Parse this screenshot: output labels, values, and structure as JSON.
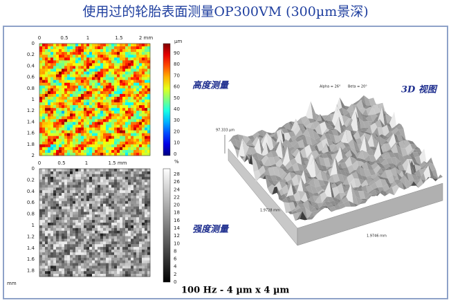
{
  "title": "使用过的轮胎表面测量OP300VM (300µm景深)",
  "height_map": {
    "label": "高度测量",
    "x_ticks": [
      "0",
      "0.5",
      "1",
      "1.5",
      "2 mm"
    ],
    "y_ticks": [
      "0",
      "0.2",
      "0.4",
      "0.6",
      "0.8",
      "1",
      "1.2",
      "1.4",
      "1.6",
      "1.8",
      "2"
    ],
    "colorbar_unit": "µm",
    "colorbar_ticks": [
      "90",
      "80",
      "70",
      "60",
      "50",
      "40",
      "30",
      "20",
      "10",
      "0"
    ]
  },
  "intensity_map": {
    "label": "强度测量",
    "x_ticks": [
      "0",
      "0.5",
      "1",
      "1.5 mm"
    ],
    "y_ticks": [
      "0",
      "0.2",
      "0.4",
      "0.6",
      "0.8",
      "1",
      "1.2",
      "1.4",
      "1.6",
      "1.8"
    ],
    "y_unit": "mm",
    "colorbar_unit": "%",
    "colorbar_ticks": [
      "28",
      "26",
      "24",
      "22",
      "20",
      "18",
      "16",
      "14",
      "12",
      "10",
      "8",
      "6",
      "4",
      "2",
      "0"
    ]
  },
  "view_3d": {
    "label": "3D 视图",
    "alpha": "Alpha = 26°",
    "beta": "Beta = 20°",
    "height": "97.333 µm",
    "width_x": "1.9728 mm",
    "width_y": "1.9746 mm"
  },
  "caption": "100 Hz - 4 µm x 4 µm"
}
